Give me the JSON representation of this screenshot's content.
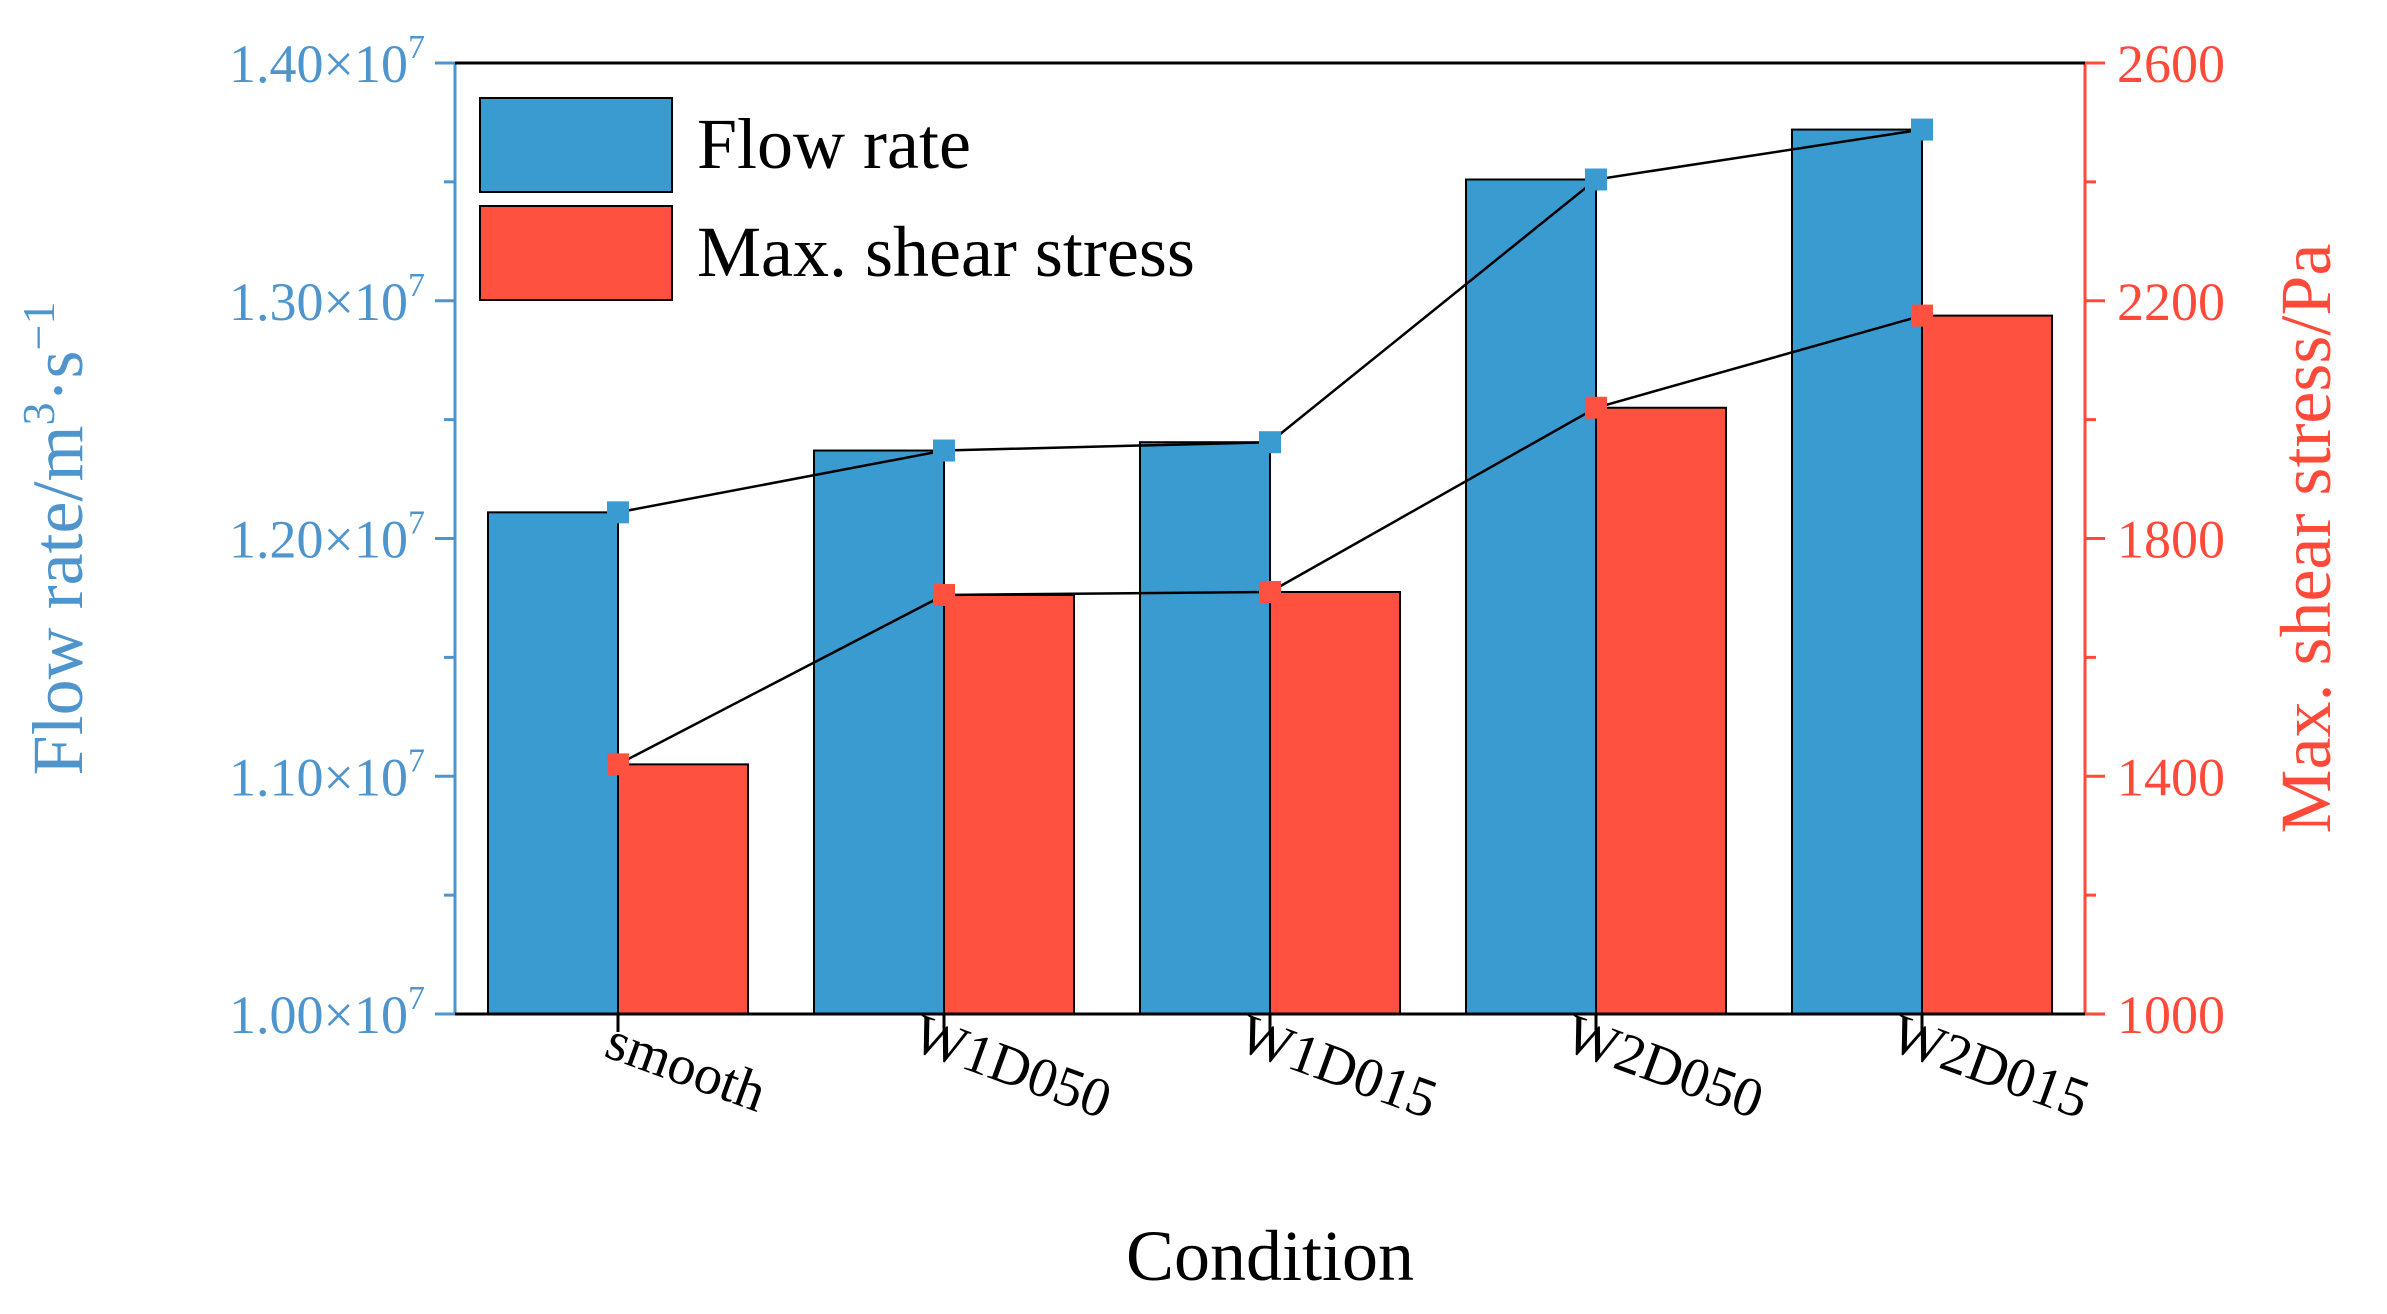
{
  "chart_data": {
    "type": "bar",
    "xlabel": "Condition",
    "categories": [
      "smooth",
      "W1D050",
      "W1D015",
      "W2D050",
      "W2D015"
    ],
    "left_axis": {
      "label_main": "Flow rate/m",
      "label_sup1": "3",
      "label_mid": "·s",
      "label_sup2": "−1",
      "ylim": [
        10000000,
        14000000
      ],
      "major_ticks": [
        10000000,
        11000000,
        12000000,
        13000000,
        14000000
      ],
      "tick_mantissas": [
        "1.00",
        "1.10",
        "1.20",
        "1.30",
        "1.40"
      ],
      "tick_times": "×10",
      "tick_exponent": "7",
      "color": "#4F95CD"
    },
    "right_axis": {
      "label": "Max. shear stress/Pa",
      "ylim": [
        1000,
        2600
      ],
      "major_ticks": [
        1000,
        1400,
        1800,
        2200,
        2600
      ],
      "tick_labels": [
        "1000",
        "1400",
        "1800",
        "2200",
        "2600"
      ],
      "color": "#FF4A3A"
    },
    "series": [
      {
        "name": "Flow rate",
        "axis": "left",
        "values": [
          12110000,
          12370000,
          12405000,
          13510000,
          13720000
        ],
        "bar_color": "#3A9BD0",
        "marker_color": "#3A9BD0"
      },
      {
        "name": "Max. shear stress",
        "axis": "right",
        "values": [
          1420,
          1705,
          1710,
          2020,
          2175
        ],
        "bar_color": "#FF5040",
        "marker_color": "#FF5040"
      }
    ],
    "legend": {
      "position": "top-left",
      "entries": [
        "Flow rate",
        "Max. shear stress"
      ]
    },
    "grid": false
  }
}
